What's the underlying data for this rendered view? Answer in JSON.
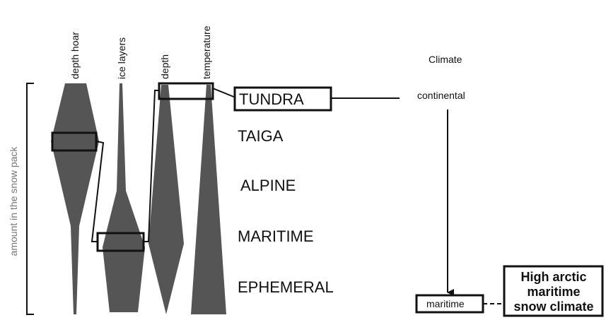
{
  "axis_label": "amount in the snow pack",
  "columns": [
    "depth hoar",
    "ice layers",
    "depth",
    "temperature"
  ],
  "snow_classes": [
    "TUNDRA",
    "TAIGA",
    "ALPINE",
    "MARITIME",
    "EPHEMERAL"
  ],
  "climate": {
    "title": "Climate",
    "top": "continental",
    "bottom": "maritime",
    "result": [
      "High arctic",
      "maritime",
      "snow climate"
    ]
  }
}
